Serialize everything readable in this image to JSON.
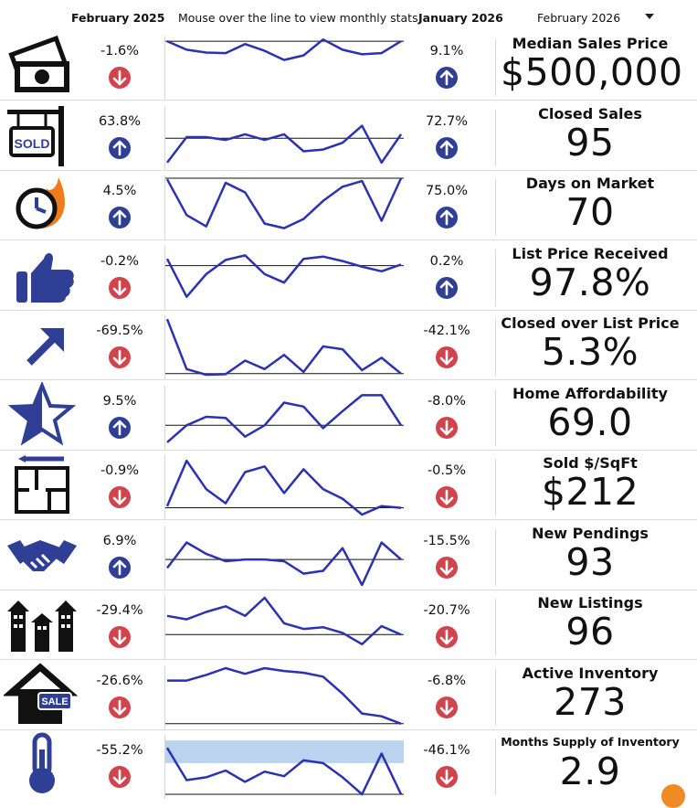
{
  "header": {
    "prev_period": "February 2025",
    "instructions": "Mouse over the line to view monthly stats",
    "cur_period": "January 2026",
    "selected_period": "February 2026"
  },
  "colors": {
    "line": "#2b32b2",
    "up": "#2f3f96",
    "down": "#d2434c",
    "band": "#bcd3f0"
  },
  "metrics": [
    {
      "title": "Median Sales Price",
      "value": "$500,000",
      "prev_change": "-1.6%",
      "prev_dir": "down",
      "cur_change": "9.1%",
      "cur_dir": "up",
      "icon": "money-icon",
      "trend": [
        0.95,
        0.8,
        0.75,
        0.74,
        0.9,
        0.78,
        0.62,
        0.7,
        0.98,
        0.8,
        0.72,
        0.74,
        0.95
      ],
      "baseline": 0.95
    },
    {
      "title": "Closed Sales",
      "value": "95",
      "prev_change": "63.8%",
      "prev_dir": "up",
      "cur_change": "72.7%",
      "cur_dir": "up",
      "icon": "sold-sign-icon",
      "trend": [
        0.05,
        0.5,
        0.5,
        0.45,
        0.55,
        0.45,
        0.55,
        0.25,
        0.28,
        0.4,
        0.7,
        0.05,
        0.55
      ],
      "baseline": 0.48
    },
    {
      "title": "Days on Market",
      "value": "70",
      "prev_change": "4.5%",
      "prev_dir": "up",
      "cur_change": "75.0%",
      "cur_dir": "up",
      "icon": "clock-fire-icon",
      "trend": [
        0.98,
        0.35,
        0.15,
        0.92,
        0.75,
        0.2,
        0.12,
        0.28,
        0.6,
        0.85,
        0.95,
        0.25,
        1.0
      ],
      "baseline": 1.0
    },
    {
      "title": "List Price Received",
      "value": "97.8%",
      "prev_change": "-0.2%",
      "prev_dir": "down",
      "cur_change": "0.2%",
      "cur_dir": "up",
      "icon": "thumbs-up-icon",
      "trend": [
        0.82,
        0.15,
        0.55,
        0.8,
        0.88,
        0.55,
        0.4,
        0.82,
        0.86,
        0.78,
        0.68,
        0.6,
        0.72
      ],
      "baseline": 0.7
    },
    {
      "title": "Closed over List Price",
      "value": "5.3%",
      "prev_change": "-69.5%",
      "prev_dir": "down",
      "cur_change": "-42.1%",
      "cur_dir": "down",
      "icon": "trend-arrow-icon",
      "trend": [
        0.98,
        0.1,
        0.0,
        0.01,
        0.25,
        0.1,
        0.35,
        0.05,
        0.5,
        0.45,
        0.08,
        0.3,
        0.02
      ],
      "baseline": 0.02
    },
    {
      "title": "Home Affordability",
      "value": "69.0",
      "prev_change": "9.5%",
      "prev_dir": "up",
      "cur_change": "-8.0%",
      "cur_dir": "down",
      "icon": "star-icon",
      "trend": [
        0.05,
        0.35,
        0.5,
        0.48,
        0.15,
        0.35,
        0.75,
        0.68,
        0.3,
        0.6,
        0.88,
        0.88,
        0.35
      ],
      "baseline": 0.35
    },
    {
      "title": "Sold $/SqFt",
      "value": "$212",
      "prev_change": "-0.9%",
      "prev_dir": "down",
      "cur_change": "-0.5%",
      "cur_dir": "down",
      "icon": "floor-plan-icon",
      "trend": [
        0.15,
        0.95,
        0.45,
        0.2,
        0.75,
        0.85,
        0.38,
        0.8,
        0.45,
        0.28,
        0.0,
        0.15,
        0.12
      ],
      "baseline": 0.12
    },
    {
      "title": "New Pendings",
      "value": "93",
      "prev_change": "6.9%",
      "prev_dir": "up",
      "cur_change": "-15.5%",
      "cur_dir": "down",
      "icon": "handshake-icon",
      "trend": [
        0.3,
        0.75,
        0.55,
        0.42,
        0.45,
        0.45,
        0.42,
        0.2,
        0.25,
        0.65,
        0.0,
        0.75,
        0.45
      ],
      "baseline": 0.45
    },
    {
      "title": "New Listings",
      "value": "96",
      "prev_change": "-29.4%",
      "prev_dir": "down",
      "cur_change": "-20.7%",
      "cur_dir": "down",
      "icon": "townhouses-icon",
      "trend": [
        0.68,
        0.62,
        0.75,
        0.85,
        0.68,
        1.0,
        0.55,
        0.45,
        0.48,
        0.38,
        0.18,
        0.5,
        0.35
      ],
      "baseline": 0.35
    },
    {
      "title": "Active Inventory",
      "value": "273",
      "prev_change": "-26.6%",
      "prev_dir": "down",
      "cur_change": "-6.8%",
      "cur_dir": "down",
      "icon": "house-sale-icon",
      "trend": [
        0.78,
        0.78,
        0.88,
        1.0,
        0.9,
        1.0,
        0.95,
        0.92,
        0.85,
        0.55,
        0.2,
        0.15,
        0.02
      ],
      "baseline": 0.02
    },
    {
      "title": "Months Supply of Inventory",
      "value": "2.9",
      "prev_change": "-55.2%",
      "prev_dir": "down",
      "cur_change": "-46.1%",
      "cur_dir": "down",
      "icon": "thermometer-icon",
      "trend": [
        0.82,
        0.25,
        0.3,
        0.42,
        0.22,
        0.4,
        0.32,
        0.6,
        0.55,
        0.3,
        0.0,
        0.72,
        0.0
      ],
      "baseline": 0.0,
      "band": [
        0.55,
        0.95
      ]
    }
  ]
}
